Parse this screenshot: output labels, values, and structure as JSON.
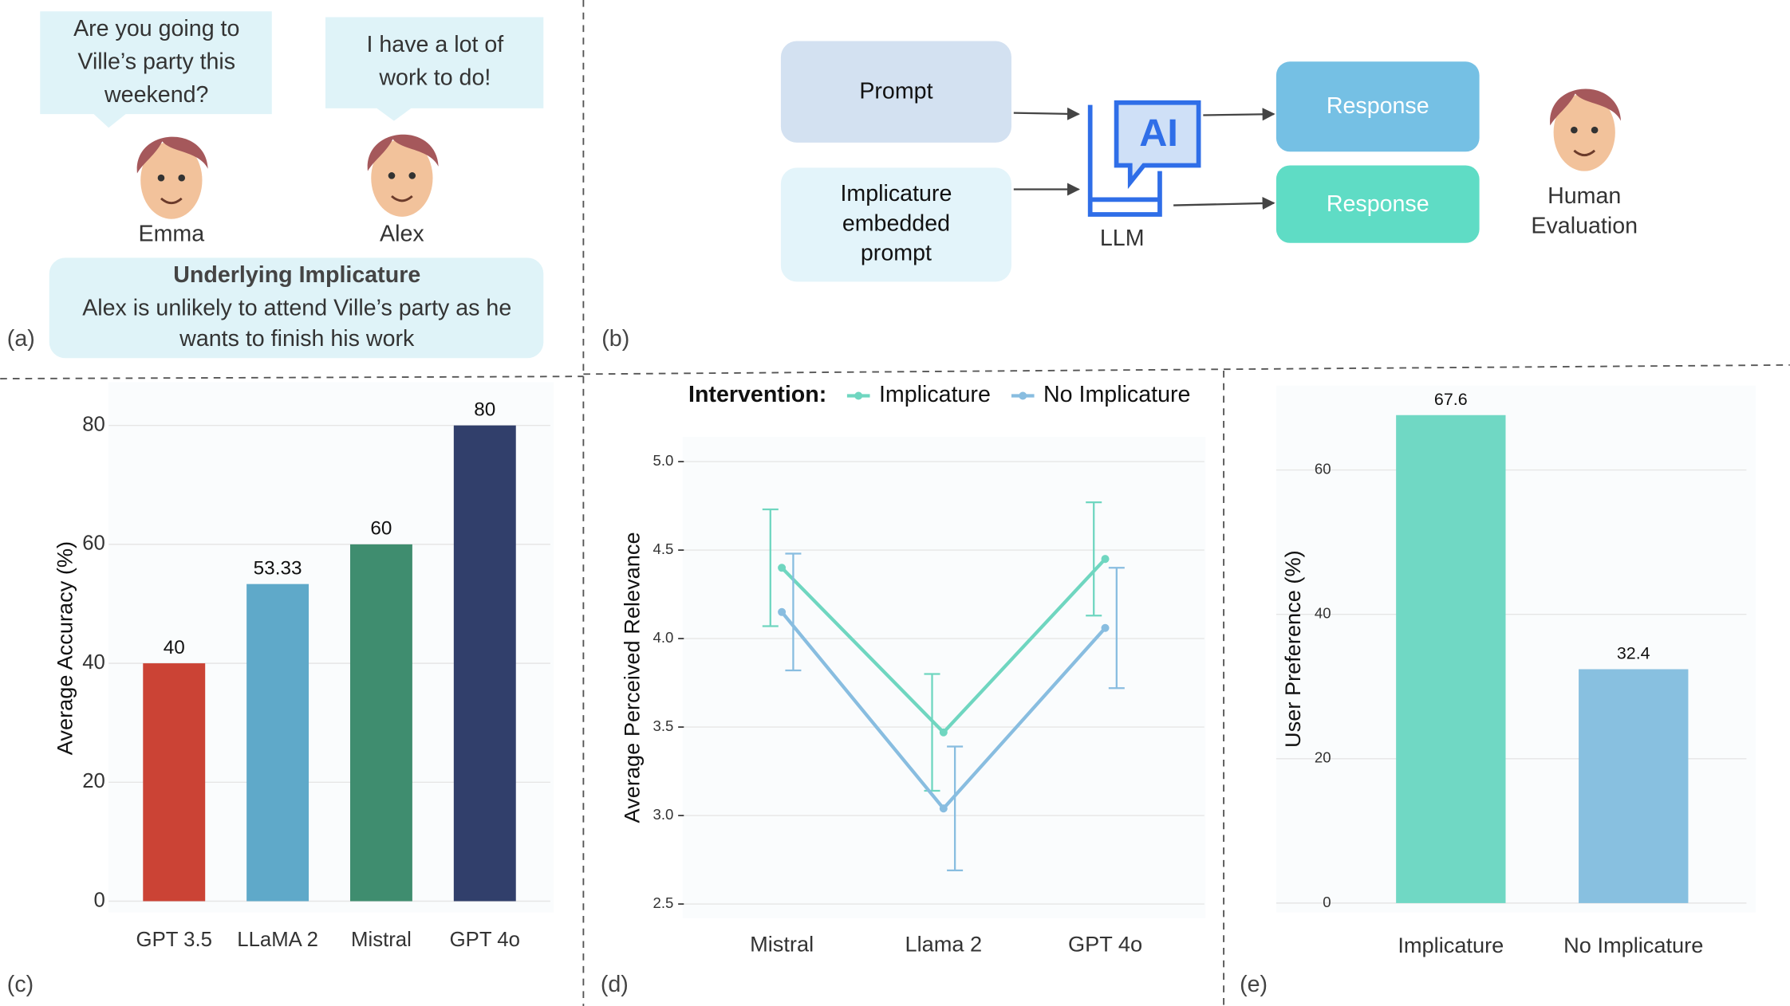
{
  "panel_a": {
    "label": "(a)",
    "bubbles": [
      {
        "lines": [
          "Are you going to",
          "Ville’s party this",
          "weekend?"
        ],
        "speaker": "Emma"
      },
      {
        "lines": [
          "I have a lot of",
          "work to do!"
        ],
        "speaker": "Alex"
      }
    ],
    "implicature_title": "Underlying Implicature",
    "implicature_lines": [
      "Alex is unlikely to attend Ville’s party as he",
      "wants to finish his work"
    ]
  },
  "panel_b": {
    "label": "(b)",
    "prompt": "Prompt",
    "embedded_prompt_lines": [
      "Implicature",
      "embedded",
      "prompt"
    ],
    "llm_icon": "AI",
    "llm": "LLM",
    "responses": [
      "Response",
      "Response"
    ],
    "evaluator_lines": [
      "Human",
      "Evaluation"
    ]
  },
  "chart_data": [
    {
      "type": "bar",
      "panel_label": "(c)",
      "y_label": "Average Accuracy (%)",
      "categories": [
        "GPT 3.5",
        "LLaMA 2",
        "Mistral",
        "GPT 4o"
      ],
      "values": [
        40,
        53.33,
        60,
        80
      ],
      "colors": [
        "#cb4335",
        "#5fa9c9",
        "#3f8d6f",
        "#313f6b"
      ],
      "ylim": [
        -1.9,
        87
      ],
      "yticks": [
        0,
        20,
        40,
        60,
        80
      ],
      "grid": true
    },
    {
      "type": "line",
      "panel_label": "(d)",
      "y_label": "Average Perceived Relevance",
      "legend_title": "Intervention:",
      "categories": [
        "Mistral",
        "Llama 2",
        "GPT 4o"
      ],
      "series": [
        {
          "name": "Implicature",
          "color": "#6fd6c0",
          "values": [
            4.4,
            3.47,
            4.45
          ],
          "errors": [
            0.33,
            0.33,
            0.32
          ]
        },
        {
          "name": "No Implicature",
          "color": "#88bde0",
          "values": [
            4.15,
            3.04,
            4.06
          ],
          "errors": [
            0.33,
            0.35,
            0.34
          ]
        }
      ],
      "ylim": [
        2.42,
        5.14
      ],
      "yticks": [
        2.5,
        {
          "value": 3,
          "label": "3.0"
        },
        3.5,
        {
          "value": 4,
          "label": "4.0"
        },
        4.5,
        {
          "value": 5,
          "label": "5.0"
        }
      ],
      "grid": true
    },
    {
      "type": "bar",
      "panel_label": "(e)",
      "y_label": "User Preference (%)",
      "categories": [
        "Implicature",
        "No Implicature"
      ],
      "values": [
        67.6,
        32.4
      ],
      "colors": [
        "#70d8c4",
        "#88c0e0"
      ],
      "ylim": [
        -1.3,
        71.7
      ],
      "yticks": [
        0,
        20,
        40,
        60
      ],
      "grid": true
    }
  ]
}
